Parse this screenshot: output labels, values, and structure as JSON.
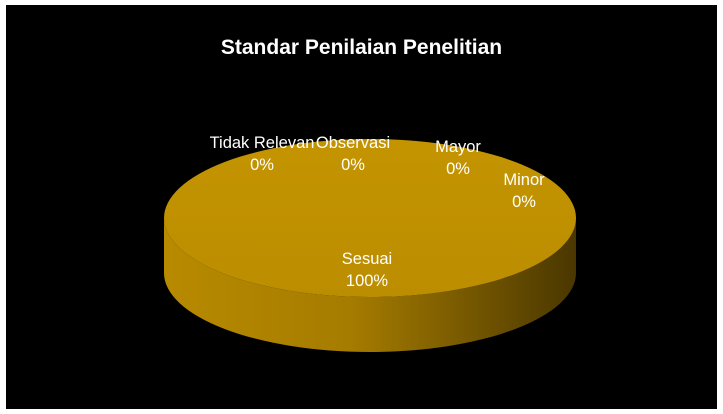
{
  "chart_data": {
    "type": "pie",
    "title": "Standar Penilaian Penelitian",
    "categories": [
      "Tidak Relevan",
      "Observasi",
      "Mayor",
      "Minor",
      "Sesuai"
    ],
    "values": [
      0,
      0,
      0,
      0,
      100
    ],
    "percent_labels": [
      "0%",
      "0%",
      "0%",
      "0%",
      "100%"
    ],
    "style": "3d",
    "legend": "none",
    "colors": {
      "slice_top": "#C09100",
      "slice_side_light": "#B38600",
      "slice_side_dark": "#4A3700",
      "background": "#000000",
      "text": "#FFFFFF"
    }
  }
}
